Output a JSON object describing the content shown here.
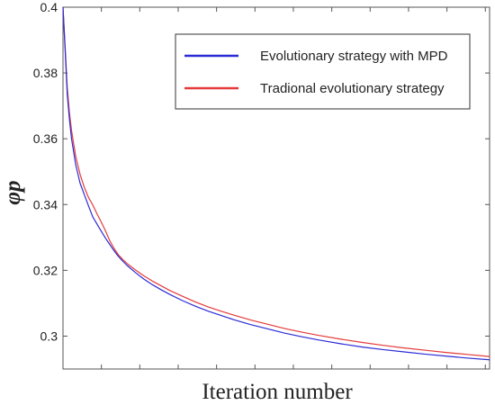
{
  "chart_data": {
    "type": "line",
    "title": "",
    "xlabel": "Iteration number",
    "ylabel": "φp",
    "xlim": [
      0,
      100
    ],
    "ylim": [
      0.29,
      0.4
    ],
    "yticks": [
      0.3,
      0.32,
      0.34,
      0.36,
      0.38,
      0.4
    ],
    "ytick_labels": [
      "0.3",
      "0.32",
      "0.34",
      "0.36",
      "0.38",
      "0.4"
    ],
    "xticks": [
      0,
      9,
      18,
      27,
      36,
      45,
      54,
      63,
      72,
      81,
      90,
      99
    ],
    "grid": false,
    "legend_position": "top-right",
    "x": [
      0,
      0.5,
      1,
      1.5,
      2,
      3,
      4,
      5,
      6,
      7,
      8,
      9,
      10,
      11,
      12,
      13,
      14,
      15,
      17,
      19,
      21,
      23,
      25,
      28,
      31,
      34,
      37,
      40,
      44,
      48,
      52,
      56,
      60,
      65,
      70,
      75,
      80,
      85,
      90,
      95,
      100
    ],
    "series": [
      {
        "name": "Evolutionary strategy with MPD",
        "color": "#2b2bd6",
        "values": [
          0.4,
          0.387,
          0.3735,
          0.366,
          0.36,
          0.352,
          0.3465,
          0.343,
          0.3395,
          0.3362,
          0.334,
          0.3318,
          0.3297,
          0.3278,
          0.3259,
          0.3242,
          0.3228,
          0.3215,
          0.3193,
          0.3173,
          0.3156,
          0.3141,
          0.3127,
          0.3108,
          0.3091,
          0.3076,
          0.3063,
          0.305,
          0.3035,
          0.3022,
          0.3009,
          0.2998,
          0.2988,
          0.2977,
          0.2967,
          0.2959,
          0.2952,
          0.2945,
          0.2939,
          0.2933,
          0.2928
        ]
      },
      {
        "name": "Tradional evolutionary strategy",
        "color": "#e53a3a",
        "values": [
          0.4,
          0.388,
          0.3755,
          0.368,
          0.3625,
          0.3545,
          0.3492,
          0.3452,
          0.3421,
          0.3398,
          0.3371,
          0.3346,
          0.3319,
          0.3289,
          0.3266,
          0.3247,
          0.3233,
          0.3221,
          0.3201,
          0.3183,
          0.3167,
          0.3153,
          0.3139,
          0.3121,
          0.3104,
          0.3089,
          0.3076,
          0.3064,
          0.3049,
          0.3036,
          0.3023,
          0.3012,
          0.3002,
          0.2991,
          0.2981,
          0.2972,
          0.2964,
          0.2957,
          0.295,
          0.2944,
          0.2938
        ]
      }
    ]
  }
}
